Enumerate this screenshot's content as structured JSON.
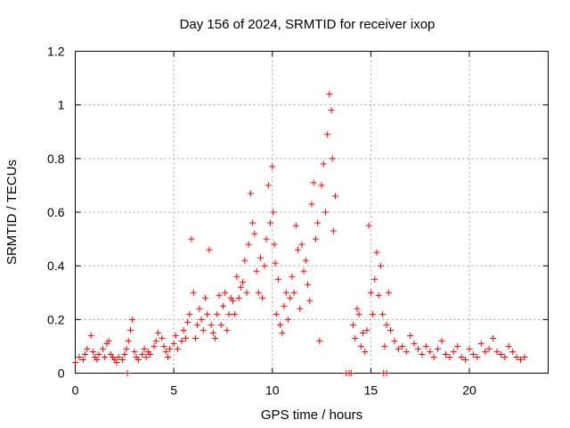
{
  "chart_data": {
    "type": "scatter",
    "title": "Day 156 of 2024, SRMTID for receiver ixop",
    "xlabel": "GPS time / hours",
    "ylabel": "SRMTID / TECUs",
    "xlim": [
      0,
      24
    ],
    "ylim": [
      0,
      1.2
    ],
    "xticks": [
      0,
      5,
      10,
      15,
      20
    ],
    "xtick_labels": [
      "0",
      "5",
      "10",
      "15",
      "20"
    ],
    "yticks": [
      0,
      0.2,
      0.4,
      0.6,
      0.8,
      1.0,
      1.2
    ],
    "ytick_labels": [
      "0",
      "0.2",
      "0.4",
      "0.6",
      "0.8",
      "1",
      "1.2"
    ],
    "grid": true,
    "marker": "+",
    "marker_color": "#ff0000",
    "series": [
      {
        "name": "SRMTID",
        "x": [
          0.0,
          0.2,
          0.4,
          0.5,
          0.6,
          0.8,
          0.9,
          1.0,
          1.1,
          1.2,
          1.4,
          1.5,
          1.6,
          1.7,
          1.8,
          1.9,
          2.0,
          2.1,
          2.2,
          2.4,
          2.5,
          2.6,
          2.7,
          2.8,
          2.9,
          3.0,
          3.1,
          3.2,
          3.4,
          3.5,
          3.6,
          3.7,
          3.8,
          4.0,
          4.1,
          4.2,
          4.4,
          4.5,
          4.6,
          4.7,
          4.8,
          5.0,
          5.1,
          5.2,
          5.4,
          5.5,
          5.6,
          5.7,
          5.8,
          5.9,
          6.0,
          6.1,
          6.2,
          6.3,
          6.4,
          6.5,
          6.6,
          6.7,
          6.8,
          6.9,
          7.0,
          7.1,
          7.2,
          7.3,
          7.4,
          7.5,
          7.6,
          7.7,
          7.8,
          7.9,
          8.0,
          8.1,
          8.2,
          8.3,
          8.4,
          8.5,
          8.6,
          8.7,
          8.8,
          8.9,
          9.0,
          9.1,
          9.2,
          9.3,
          9.4,
          9.5,
          9.6,
          9.7,
          9.8,
          9.9,
          10.0,
          10.05,
          10.1,
          10.15,
          10.2,
          10.3,
          10.4,
          10.5,
          10.6,
          10.7,
          10.8,
          10.9,
          11.0,
          11.1,
          11.2,
          11.3,
          11.4,
          11.5,
          11.6,
          11.7,
          11.8,
          11.9,
          12.0,
          12.1,
          12.2,
          12.3,
          12.4,
          12.5,
          12.6,
          12.7,
          12.8,
          12.9,
          13.0,
          13.05,
          13.1,
          13.2,
          14.1,
          14.2,
          14.3,
          14.4,
          14.5,
          14.6,
          14.7,
          14.8,
          14.9,
          15.0,
          15.1,
          15.2,
          15.3,
          15.4,
          15.5,
          15.6,
          15.7,
          15.8,
          15.9,
          16.0,
          16.2,
          16.4,
          16.6,
          16.8,
          17.0,
          17.2,
          17.4,
          17.6,
          17.8,
          18.0,
          18.2,
          18.4,
          18.6,
          18.8,
          19.0,
          19.2,
          19.4,
          19.6,
          19.8,
          20.0,
          20.2,
          20.4,
          20.6,
          20.8,
          21.0,
          21.2,
          21.4,
          21.6,
          21.8,
          22.0,
          22.2,
          22.4,
          22.6,
          22.8,
          2.65,
          13.75,
          13.9,
          14.0,
          15.65,
          15.8
        ],
        "y": [
          0.04,
          0.06,
          0.05,
          0.07,
          0.09,
          0.14,
          0.08,
          0.06,
          0.05,
          0.07,
          0.09,
          0.06,
          0.11,
          0.12,
          0.07,
          0.06,
          0.05,
          0.04,
          0.06,
          0.05,
          0.07,
          0.09,
          0.12,
          0.16,
          0.2,
          0.08,
          0.06,
          0.05,
          0.07,
          0.09,
          0.06,
          0.08,
          0.07,
          0.1,
          0.12,
          0.15,
          0.13,
          0.1,
          0.08,
          0.06,
          0.09,
          0.11,
          0.14,
          0.09,
          0.12,
          0.16,
          0.13,
          0.19,
          0.22,
          0.5,
          0.3,
          0.13,
          0.18,
          0.24,
          0.2,
          0.16,
          0.28,
          0.22,
          0.46,
          0.18,
          0.15,
          0.13,
          0.22,
          0.29,
          0.18,
          0.25,
          0.3,
          0.16,
          0.22,
          0.28,
          0.27,
          0.22,
          0.36,
          0.28,
          0.32,
          0.34,
          0.42,
          0.3,
          0.48,
          0.67,
          0.56,
          0.52,
          0.38,
          0.3,
          0.43,
          0.28,
          0.4,
          0.5,
          0.7,
          0.56,
          0.77,
          0.6,
          0.48,
          0.41,
          0.22,
          0.35,
          0.18,
          0.15,
          0.25,
          0.3,
          0.2,
          0.28,
          0.36,
          0.3,
          0.55,
          0.46,
          0.24,
          0.48,
          0.38,
          0.42,
          0.33,
          0.27,
          0.63,
          0.71,
          0.5,
          0.56,
          0.12,
          0.7,
          0.78,
          0.6,
          0.89,
          1.04,
          0.98,
          0.8,
          0.53,
          0.66,
          0.18,
          0.13,
          0.24,
          0.22,
          0.1,
          0.15,
          0.08,
          0.16,
          0.55,
          0.3,
          0.22,
          0.35,
          0.45,
          0.29,
          0.4,
          0.22,
          0.1,
          0.18,
          0.3,
          0.16,
          0.12,
          0.09,
          0.1,
          0.08,
          0.14,
          0.11,
          0.09,
          0.07,
          0.1,
          0.08,
          0.06,
          0.09,
          0.12,
          0.07,
          0.06,
          0.08,
          0.1,
          0.06,
          0.05,
          0.09,
          0.07,
          0.06,
          0.11,
          0.08,
          0.09,
          0.13,
          0.08,
          0.07,
          0.06,
          0.1,
          0.08,
          0.06,
          0.05,
          0.06,
          0.0,
          0.0,
          0.0,
          0.0,
          0.0,
          0.0
        ]
      }
    ]
  }
}
